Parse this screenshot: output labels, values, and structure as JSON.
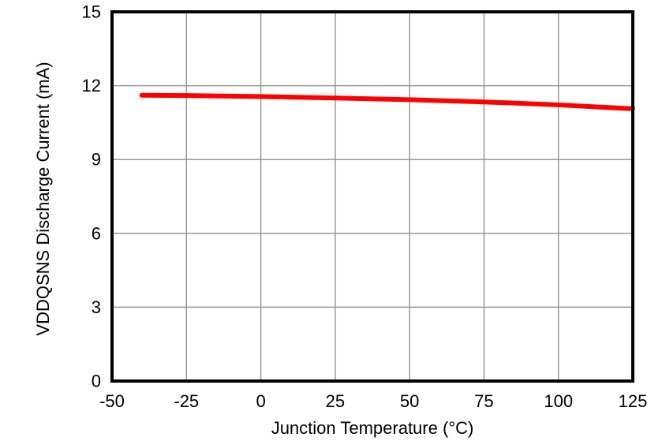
{
  "figure": {
    "background": "#FFFFFF",
    "axis_color": "#000000",
    "grid_color": "#999999",
    "text_color": "#000000"
  },
  "chart_data": {
    "type": "line",
    "title": "",
    "xlabel": "Junction Temperature (°C)",
    "ylabel": "VDDQSNS Discharge Current (mA)",
    "xlim": [
      -50,
      125
    ],
    "ylim": [
      0,
      15
    ],
    "xticks": [
      -50,
      -25,
      0,
      25,
      50,
      75,
      100,
      125
    ],
    "yticks": [
      0,
      3,
      6,
      9,
      12,
      15
    ],
    "grid": true,
    "legend": "none",
    "series": [
      {
        "name": "VDDQSNS discharge current",
        "color": "#FF0000",
        "line_width": 6,
        "x": [
          -40,
          -25,
          0,
          25,
          50,
          75,
          100,
          125
        ],
        "y": [
          11.61,
          11.6,
          11.56,
          11.5,
          11.43,
          11.34,
          11.22,
          11.06
        ]
      }
    ]
  }
}
